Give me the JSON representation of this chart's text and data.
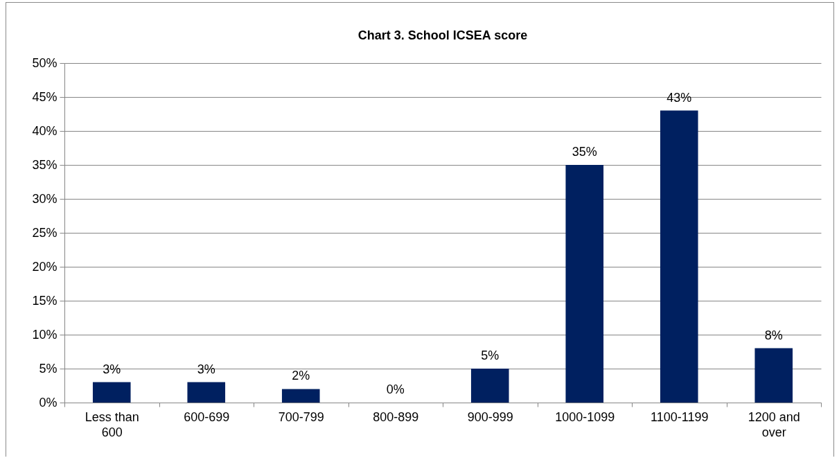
{
  "chart_data": {
    "type": "bar",
    "title": "Chart 3. School ICSEA score",
    "categories": [
      "Less than 600",
      "600-699",
      "700-799",
      "800-899",
      "900-999",
      "1000-1099",
      "1100-1199",
      "1200 and over"
    ],
    "values": [
      3,
      3,
      2,
      0,
      5,
      35,
      43,
      8
    ],
    "value_labels": [
      "3%",
      "3%",
      "2%",
      "0%",
      "5%",
      "35%",
      "43%",
      "8%"
    ],
    "color": "#002060",
    "ylim": [
      0,
      50
    ],
    "yticks": [
      {
        "value": 0,
        "label": "0%"
      },
      {
        "value": 5,
        "label": "5%"
      },
      {
        "value": 10,
        "label": "10%"
      },
      {
        "value": 15,
        "label": "15%"
      },
      {
        "value": 20,
        "label": "20%"
      },
      {
        "value": 25,
        "label": "25%"
      },
      {
        "value": 30,
        "label": "30%"
      },
      {
        "value": 35,
        "label": "35%"
      },
      {
        "value": 40,
        "label": "40%"
      },
      {
        "value": 45,
        "label": "45%"
      },
      {
        "value": 50,
        "label": "50%"
      }
    ],
    "grid": "y"
  }
}
